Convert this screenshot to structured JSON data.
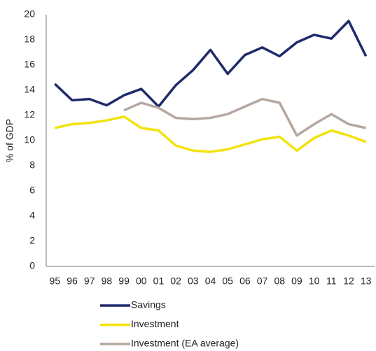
{
  "chart_data": {
    "type": "line",
    "y_label": "% of GDP",
    "categories": [
      "95",
      "96",
      "97",
      "98",
      "99",
      "00",
      "01",
      "02",
      "03",
      "04",
      "05",
      "06",
      "07",
      "08",
      "09",
      "10",
      "11",
      "12",
      "13"
    ],
    "series": [
      {
        "name": "Savings",
        "color": "#1f2a6b",
        "values": [
          14.5,
          13.2,
          13.3,
          12.8,
          13.6,
          14.1,
          12.7,
          14.4,
          15.6,
          17.2,
          15.3,
          16.8,
          17.4,
          16.7,
          17.8,
          18.4,
          18.1,
          19.5,
          16.7
        ]
      },
      {
        "name": "Investment",
        "color": "#f2e30f",
        "values": [
          11.0,
          11.3,
          11.4,
          11.6,
          11.9,
          11.0,
          10.8,
          9.6,
          9.2,
          9.1,
          9.3,
          9.7,
          10.1,
          10.3,
          9.2,
          10.2,
          10.8,
          10.4,
          9.9
        ]
      },
      {
        "name": "Investment (EA average)",
        "color": "#b5a7a0",
        "values": [
          null,
          null,
          null,
          null,
          12.4,
          13.0,
          12.6,
          11.8,
          11.7,
          11.8,
          12.1,
          12.7,
          13.3,
          13.0,
          10.4,
          11.3,
          12.1,
          11.3,
          11.0
        ]
      }
    ],
    "ylim": [
      0,
      20
    ],
    "yticks": [
      0,
      2,
      4,
      6,
      8,
      10,
      12,
      14,
      16,
      18,
      20
    ],
    "grid": false,
    "legend": "bottom"
  }
}
